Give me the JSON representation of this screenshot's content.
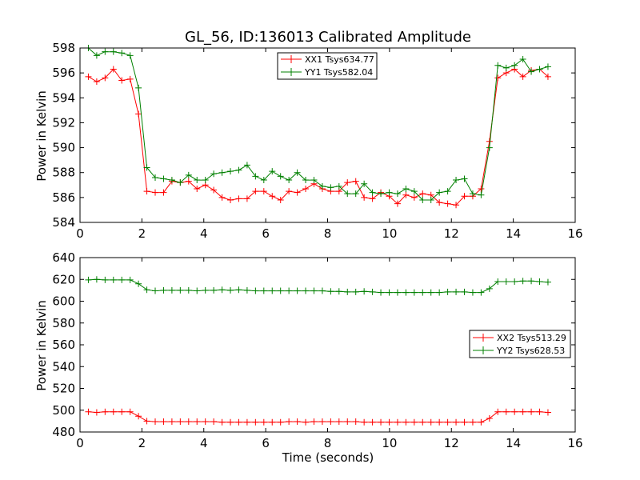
{
  "chart_data": [
    {
      "type": "line",
      "title": "GL_56, ID:136013 Calibrated Amplitude",
      "xlabel": "",
      "ylabel": "Power in Kelvin",
      "xlim": [
        0,
        16
      ],
      "ylim": [
        584,
        598
      ],
      "xticks": [
        0,
        2,
        4,
        6,
        8,
        10,
        12,
        14,
        16
      ],
      "yticks": [
        584,
        586,
        588,
        590,
        592,
        594,
        596,
        598
      ],
      "grid": false,
      "legend_position": "top-center",
      "series": [
        {
          "name": "XX1 Tsys634.77",
          "color": "#ff0000",
          "x": [
            0.27,
            0.54,
            0.81,
            1.08,
            1.35,
            1.62,
            1.89,
            2.16,
            2.43,
            2.7,
            2.97,
            3.24,
            3.51,
            3.78,
            4.05,
            4.32,
            4.59,
            4.86,
            5.13,
            5.4,
            5.67,
            5.94,
            6.21,
            6.48,
            6.75,
            7.02,
            7.29,
            7.56,
            7.83,
            8.1,
            8.37,
            8.64,
            8.91,
            9.18,
            9.45,
            9.72,
            9.99,
            10.26,
            10.53,
            10.8,
            11.07,
            11.34,
            11.61,
            11.88,
            12.15,
            12.42,
            12.69,
            12.96,
            13.23,
            13.5,
            13.77,
            14.04,
            14.31,
            14.58,
            14.85,
            15.12
          ],
          "y": [
            595.7,
            595.3,
            595.6,
            596.3,
            595.4,
            595.5,
            592.7,
            586.5,
            586.4,
            586.4,
            587.3,
            587.2,
            587.3,
            586.7,
            587.0,
            586.6,
            586.0,
            585.8,
            585.9,
            585.9,
            586.5,
            586.5,
            586.1,
            585.8,
            586.5,
            586.4,
            586.7,
            587.1,
            586.7,
            586.5,
            586.5,
            587.2,
            587.3,
            586.0,
            585.9,
            586.4,
            586.1,
            585.5,
            586.2,
            586.0,
            586.3,
            586.2,
            585.6,
            585.5,
            585.4,
            586.1,
            586.1,
            586.7,
            590.5,
            595.6,
            596.0,
            596.3,
            595.7,
            596.2,
            596.3,
            595.7
          ]
        },
        {
          "name": "YY1 Tsys582.04",
          "color": "#008000",
          "x": [
            0.27,
            0.54,
            0.81,
            1.08,
            1.35,
            1.62,
            1.89,
            2.16,
            2.43,
            2.7,
            2.97,
            3.24,
            3.51,
            3.78,
            4.05,
            4.32,
            4.59,
            4.86,
            5.13,
            5.4,
            5.67,
            5.94,
            6.21,
            6.48,
            6.75,
            7.02,
            7.29,
            7.56,
            7.83,
            8.1,
            8.37,
            8.64,
            8.91,
            9.18,
            9.45,
            9.72,
            9.99,
            10.26,
            10.53,
            10.8,
            11.07,
            11.34,
            11.61,
            11.88,
            12.15,
            12.42,
            12.69,
            12.96,
            13.23,
            13.5,
            13.77,
            14.04,
            14.31,
            14.58,
            14.85,
            15.12
          ],
          "y": [
            598.0,
            597.4,
            597.7,
            597.7,
            597.6,
            597.4,
            594.8,
            588.4,
            587.6,
            587.5,
            587.4,
            587.2,
            587.8,
            587.4,
            587.4,
            587.9,
            588.0,
            588.1,
            588.2,
            588.6,
            587.7,
            587.4,
            588.1,
            587.7,
            587.4,
            588.0,
            587.4,
            587.4,
            586.9,
            586.8,
            586.9,
            586.3,
            586.3,
            587.1,
            586.4,
            586.3,
            586.4,
            586.3,
            586.7,
            586.5,
            585.8,
            585.8,
            586.4,
            586.5,
            587.4,
            587.5,
            586.3,
            586.2,
            590.0,
            596.6,
            596.4,
            596.6,
            597.1,
            596.1,
            596.3,
            596.5
          ]
        }
      ]
    },
    {
      "type": "line",
      "title": "",
      "xlabel": "Time (seconds)",
      "ylabel": "Power in Kelvin",
      "xlim": [
        0,
        16
      ],
      "ylim": [
        480,
        640
      ],
      "xticks": [
        0,
        2,
        4,
        6,
        8,
        10,
        12,
        14,
        16
      ],
      "yticks": [
        480,
        500,
        520,
        540,
        560,
        580,
        600,
        620,
        640
      ],
      "grid": false,
      "legend_position": "center-right",
      "series": [
        {
          "name": "XX2 Tsys513.29",
          "color": "#ff0000",
          "x": [
            0.27,
            0.54,
            0.81,
            1.08,
            1.35,
            1.62,
            1.89,
            2.16,
            2.43,
            2.7,
            2.97,
            3.24,
            3.51,
            3.78,
            4.05,
            4.32,
            4.59,
            4.86,
            5.13,
            5.4,
            5.67,
            5.94,
            6.21,
            6.48,
            6.75,
            7.02,
            7.29,
            7.56,
            7.83,
            8.1,
            8.37,
            8.64,
            8.91,
            9.18,
            9.45,
            9.72,
            9.99,
            10.26,
            10.53,
            10.8,
            11.07,
            11.34,
            11.61,
            11.88,
            12.15,
            12.42,
            12.69,
            12.96,
            13.23,
            13.5,
            13.77,
            14.04,
            14.31,
            14.58,
            14.85,
            15.12
          ],
          "y": [
            498.5,
            498,
            498.5,
            498.5,
            498.5,
            498.5,
            494.5,
            490,
            489.5,
            489.5,
            489.5,
            489.5,
            489.5,
            489.5,
            489.5,
            489.5,
            489,
            489,
            489,
            489,
            489,
            489,
            489,
            489,
            489.5,
            489.5,
            489,
            489.5,
            489.5,
            489.5,
            489.5,
            489.5,
            489.5,
            489,
            489,
            489,
            489,
            489,
            489,
            489,
            489,
            489,
            489,
            489,
            489,
            489,
            489,
            489,
            492.5,
            498.5,
            498.5,
            498.5,
            498.5,
            498.5,
            498.5,
            498
          ]
        },
        {
          "name": "YY2 Tsys628.53",
          "color": "#008000",
          "x": [
            0.27,
            0.54,
            0.81,
            1.08,
            1.35,
            1.62,
            1.89,
            2.16,
            2.43,
            2.7,
            2.97,
            3.24,
            3.51,
            3.78,
            4.05,
            4.32,
            4.59,
            4.86,
            5.13,
            5.4,
            5.67,
            5.94,
            6.21,
            6.48,
            6.75,
            7.02,
            7.29,
            7.56,
            7.83,
            8.1,
            8.37,
            8.64,
            8.91,
            9.18,
            9.45,
            9.72,
            9.99,
            10.26,
            10.53,
            10.8,
            11.07,
            11.34,
            11.61,
            11.88,
            12.15,
            12.42,
            12.69,
            12.96,
            13.23,
            13.5,
            13.77,
            14.04,
            14.31,
            14.58,
            14.85,
            15.12
          ],
          "y": [
            619.5,
            620,
            619.5,
            619.5,
            619.5,
            619.5,
            616,
            610.5,
            609.5,
            610,
            610,
            610,
            610,
            609.5,
            610,
            610,
            610.5,
            610,
            610.5,
            610,
            609.5,
            609.5,
            609.5,
            609.5,
            609.5,
            609.5,
            609.5,
            609.5,
            609.5,
            609,
            609,
            608.5,
            608.5,
            609,
            608.5,
            608,
            608,
            608,
            608,
            608,
            608,
            608,
            608,
            608.5,
            608.5,
            608.5,
            608,
            608,
            611.5,
            618,
            618,
            618,
            618.5,
            618.5,
            618,
            617.5
          ]
        }
      ]
    }
  ]
}
